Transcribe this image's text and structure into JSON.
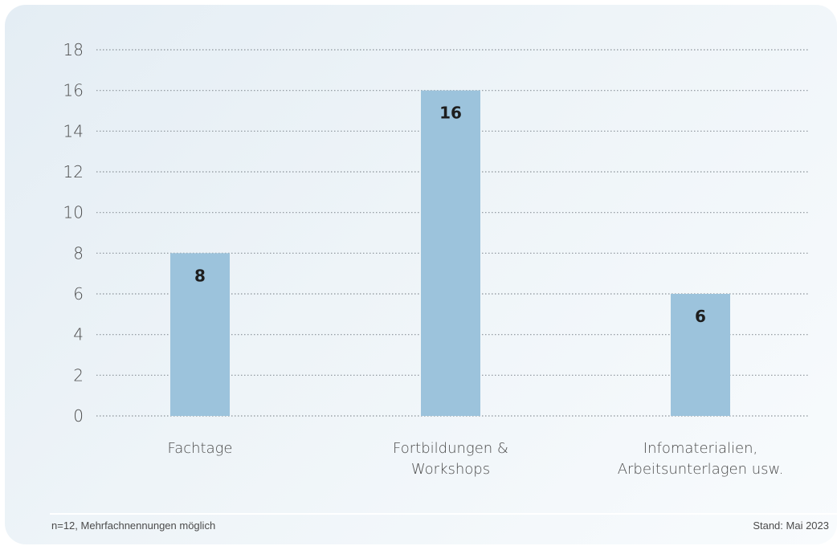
{
  "chart_data": {
    "type": "bar",
    "categories": [
      [
        "Fachtage"
      ],
      [
        "Fortbildungen &",
        "Workshops"
      ],
      [
        "Infomaterialien,",
        "Arbeitsunterlagen usw."
      ]
    ],
    "values": [
      8,
      16,
      6
    ],
    "value_labels": [
      "8",
      "16",
      "6"
    ],
    "title": "",
    "xlabel": "",
    "ylabel": "",
    "ylim": [
      0,
      18
    ],
    "yticks": [
      "0",
      "2",
      "4",
      "6",
      "8",
      "10",
      "12",
      "14",
      "16",
      "18"
    ],
    "grid": true,
    "bar_color": "#9cc3dc"
  },
  "footer": {
    "note": "n=12, Mehrfachnennungen möglich",
    "date": "Stand: Mai 2023"
  }
}
